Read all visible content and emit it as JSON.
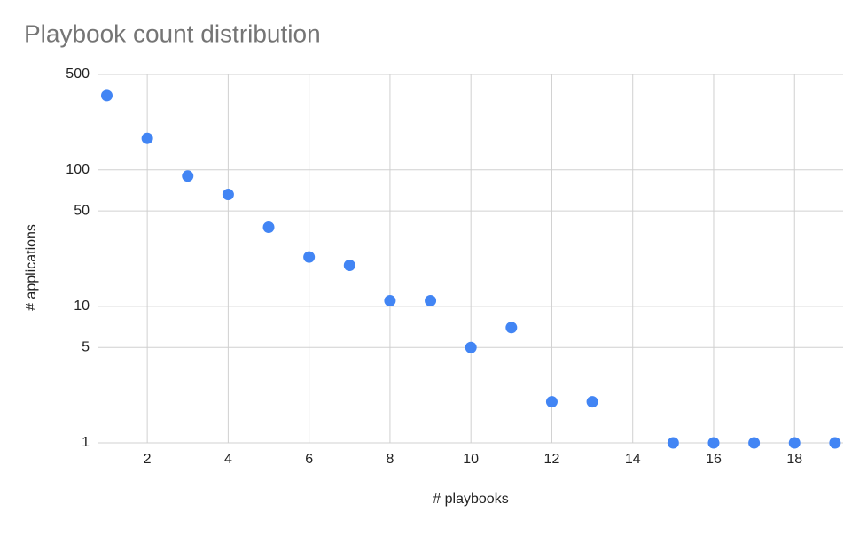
{
  "chart_data": {
    "type": "scatter",
    "title": "Playbook count distribution",
    "x_label": "# playbooks",
    "y_label": "# applications",
    "x": [
      1,
      2,
      3,
      4,
      5,
      6,
      7,
      8,
      9,
      10,
      11,
      12,
      13,
      15,
      16,
      17,
      18,
      19
    ],
    "values": [
      350,
      170,
      90,
      66,
      38,
      23,
      20,
      11,
      11,
      5,
      7,
      2,
      2,
      1,
      1,
      1,
      1,
      1
    ],
    "color": "#4285f4",
    "xlim": [
      0.77,
      19.2
    ],
    "xticks": [
      2,
      4,
      6,
      8,
      10,
      12,
      14,
      16,
      18
    ],
    "ylim": [
      1,
      500
    ],
    "yticks": [
      1,
      5,
      10,
      50,
      100,
      500
    ],
    "y_log": true,
    "grid": true
  }
}
